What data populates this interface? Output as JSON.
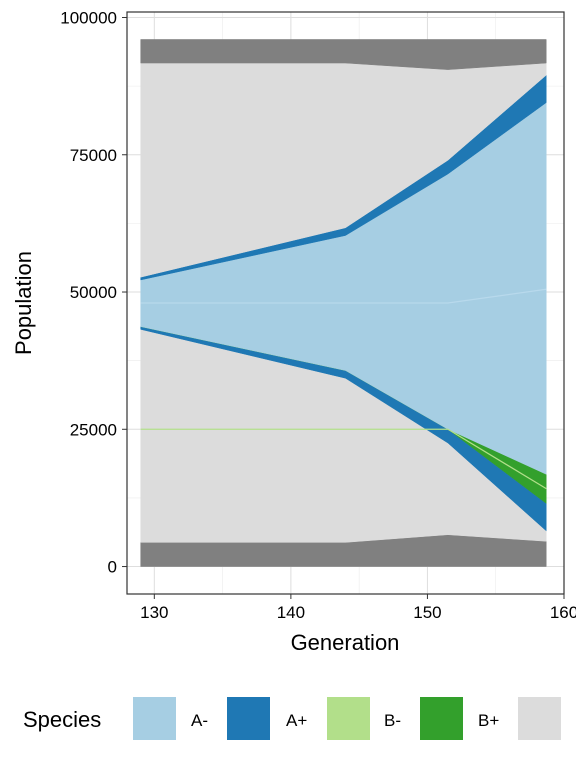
{
  "chart_data": {
    "type": "area",
    "xlabel": "Generation",
    "ylabel": "Population",
    "xlim": [
      128,
      160
    ],
    "ylim": [
      -5000,
      101000
    ],
    "x_ticks": [
      130,
      140,
      150,
      160
    ],
    "y_ticks": [
      0,
      25000,
      50000,
      75000,
      100000
    ],
    "x_tick_labels": [
      "130",
      "140",
      "150",
      "160"
    ],
    "y_tick_labels": [
      "0",
      "25000",
      "50000",
      "75000",
      "100000"
    ],
    "grid": true,
    "legend_title": "Species",
    "legend_position": "bottom",
    "x": [
      129,
      144,
      151.5,
      158.7
    ],
    "layers": [
      {
        "key": "gray-dark-bottom",
        "color": "#808080",
        "lower": [
          0,
          0,
          0,
          0
        ],
        "upper": [
          4400,
          4400,
          5800,
          4600
        ]
      },
      {
        "key": "gray-light-bottom",
        "color": "#dcdcdc",
        "lower": [
          4400,
          4400,
          5800,
          4600
        ],
        "upper": [
          43200,
          34300,
          22500,
          6500
        ]
      },
      {
        "key": "A+ lower",
        "color": "#1f78b4",
        "lower": [
          43200,
          34300,
          22500,
          6500
        ],
        "upper": [
          43700,
          35700,
          25000,
          11500
        ]
      },
      {
        "key": "B+",
        "color": "#33a02c",
        "lower": [
          43700,
          35700,
          25000,
          11500
        ],
        "upper": [
          43700,
          35700,
          25000,
          16800
        ]
      },
      {
        "key": "A-",
        "color": "#a6cee3",
        "lower": [
          43700,
          35700,
          25000,
          16800
        ],
        "upper": [
          52200,
          60300,
          71500,
          84500
        ]
      },
      {
        "key": "A+ upper",
        "color": "#1f78b4",
        "lower": [
          52200,
          60300,
          71500,
          84500
        ],
        "upper": [
          52700,
          61700,
          74000,
          89500
        ]
      },
      {
        "key": "gray-light-top",
        "color": "#dcdcdc",
        "lower": [
          52700,
          61700,
          74000,
          89500
        ],
        "upper": [
          91700,
          91700,
          90500,
          91700
        ]
      },
      {
        "key": "gray-dark-top",
        "color": "#808080",
        "lower": [
          91700,
          91700,
          90500,
          91700
        ],
        "upper": [
          96000,
          96000,
          96000,
          96000
        ]
      }
    ],
    "lines": [
      {
        "key": "A- center",
        "color": "#b8d9ec",
        "y": [
          48000,
          48000,
          48000,
          50500
        ]
      },
      {
        "key": "B- thin",
        "color": "#b2df8a",
        "y": [
          25000,
          25000,
          25000,
          14200
        ]
      }
    ],
    "legend": [
      {
        "label": "A-",
        "color": "#a6cee3"
      },
      {
        "label": "A+",
        "color": "#1f78b4"
      },
      {
        "label": "B-",
        "color": "#b2df8a"
      },
      {
        "label": "B+",
        "color": "#33a02c"
      },
      {
        "label": "",
        "color": "#dcdcdc"
      }
    ]
  }
}
